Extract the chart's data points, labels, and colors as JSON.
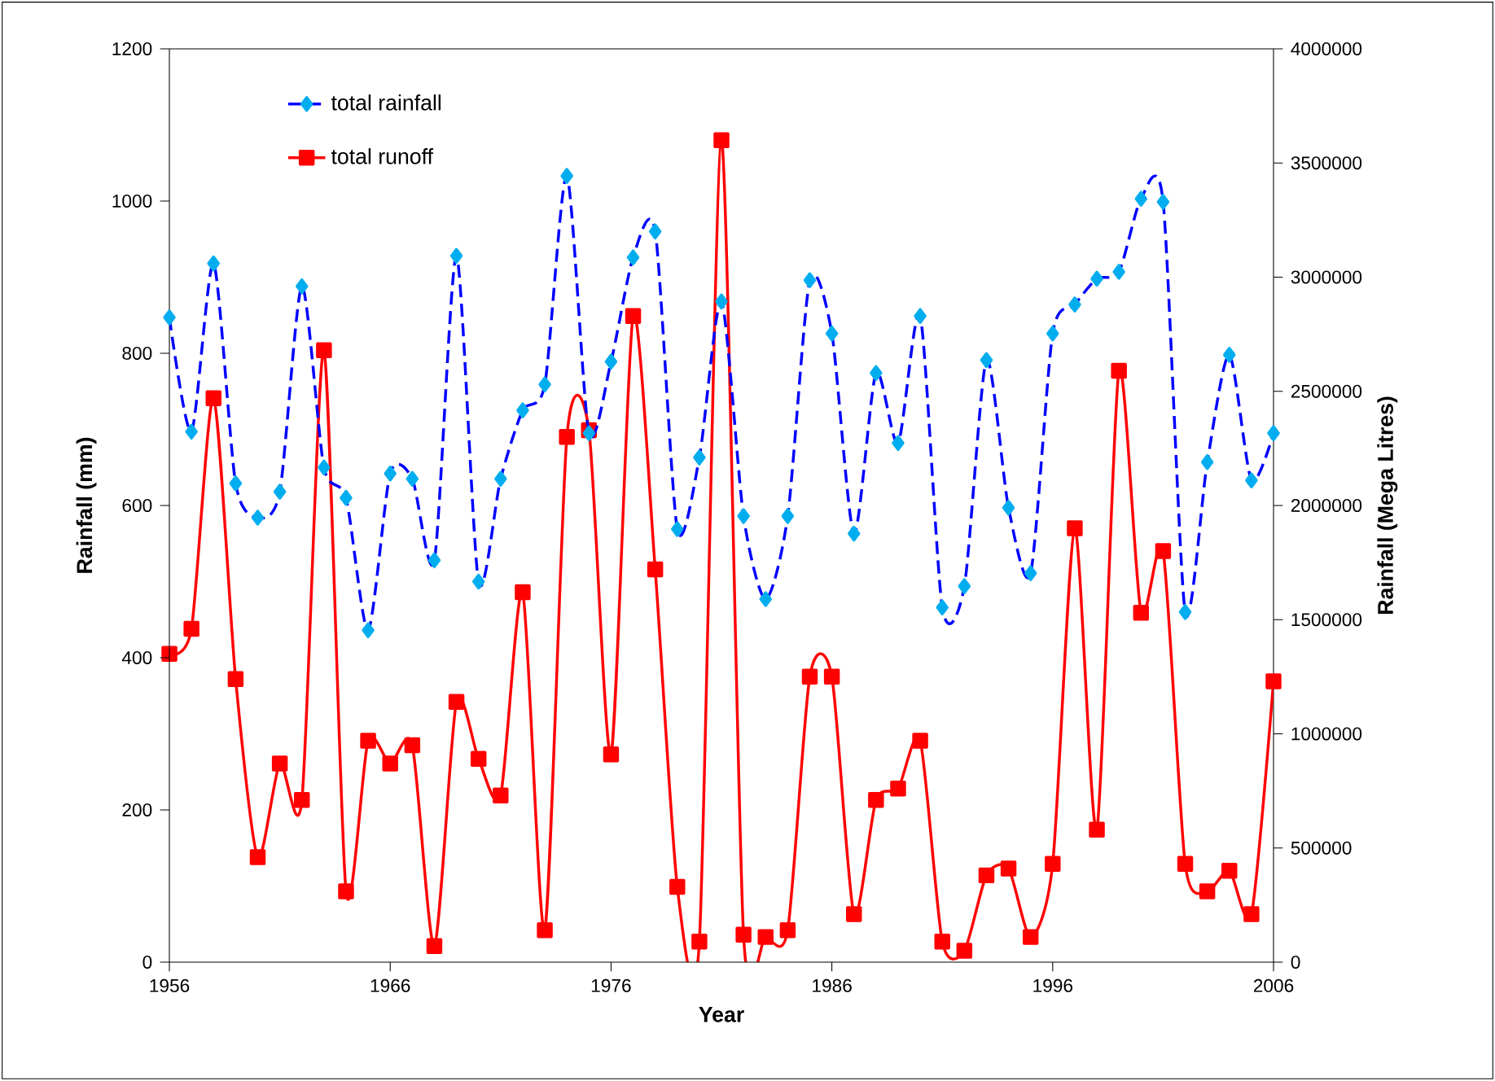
{
  "chart_data": {
    "type": "line",
    "xlabel": "Year",
    "ylabel": "Rainfall (mm)",
    "y2label": "Rainfall (Mega Litres)",
    "x": [
      1956,
      1957,
      1958,
      1959,
      1960,
      1961,
      1962,
      1963,
      1964,
      1965,
      1966,
      1967,
      1968,
      1969,
      1970,
      1971,
      1972,
      1973,
      1974,
      1975,
      1976,
      1977,
      1978,
      1979,
      1980,
      1981,
      1982,
      1983,
      1984,
      1985,
      1986,
      1987,
      1988,
      1989,
      1990,
      1991,
      1992,
      1993,
      1994,
      1995,
      1996,
      1997,
      1998,
      1999,
      2000,
      2001,
      2002,
      2003,
      2004,
      2005,
      2006
    ],
    "xlim": [
      1956,
      2006
    ],
    "xticks": [
      1956,
      1966,
      1976,
      1986,
      1996,
      2006
    ],
    "ylim": [
      0,
      1200
    ],
    "yticks": [
      0,
      200,
      400,
      600,
      800,
      1000,
      1200
    ],
    "y2lim": [
      0,
      4000000
    ],
    "y2ticks": [
      0,
      500000,
      1000000,
      1500000,
      2000000,
      2500000,
      3000000,
      3500000,
      4000000
    ],
    "legend": "top left",
    "series": [
      {
        "name": "total rainfall",
        "color": "#0000ff",
        "marker": "diamond",
        "line_style": "dashed",
        "axis": "y",
        "values": [
          847,
          697,
          918,
          629,
          584,
          618,
          888,
          650,
          610,
          436,
          642,
          635,
          528,
          928,
          500,
          635,
          725,
          759,
          1033,
          695,
          789,
          926,
          960,
          569,
          663,
          868,
          586,
          477,
          586,
          896,
          826,
          563,
          774,
          682,
          849,
          466,
          494,
          791,
          597,
          511,
          826,
          864,
          898,
          907,
          1003,
          999,
          460,
          657,
          798,
          633,
          695
        ]
      },
      {
        "name": "total runoff",
        "color": "#ff0000",
        "marker": "square",
        "line_style": "solid",
        "axis": "y2",
        "values": [
          1350000,
          1460000,
          2470000,
          1240000,
          460000,
          870000,
          710000,
          2680000,
          310000,
          970000,
          870000,
          950000,
          70000,
          1140000,
          890000,
          730000,
          1620000,
          140000,
          2300000,
          2330000,
          910000,
          2830000,
          1720000,
          330000,
          90000,
          3600000,
          120000,
          110000,
          140000,
          1250000,
          1250000,
          210000,
          710000,
          760000,
          970000,
          90000,
          50000,
          380000,
          410000,
          110000,
          430000,
          1900000,
          580000,
          2590000,
          1530000,
          1800000,
          430000,
          310000,
          400000,
          210000,
          1230000
        ]
      }
    ]
  }
}
